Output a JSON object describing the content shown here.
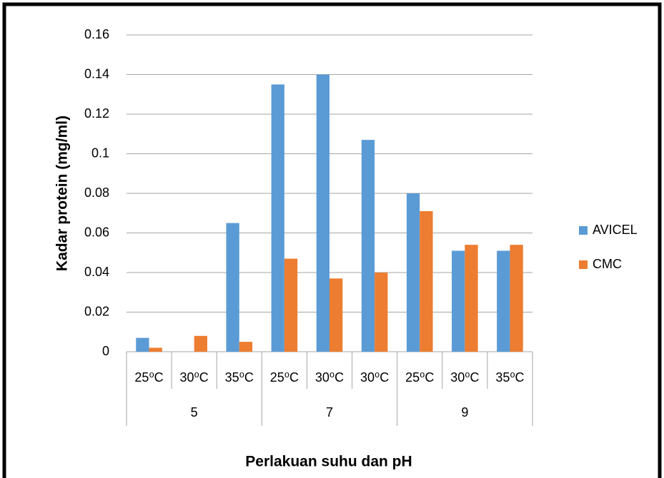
{
  "chart_data": {
    "type": "bar",
    "x_label": "Perlakuan suhu dan pH",
    "y_label": "Kadar protein (mg/ml)",
    "categories": [
      "25⁰C",
      "30⁰C",
      "35⁰C",
      "25⁰C",
      "30⁰C",
      "30⁰C",
      "25⁰C",
      "30⁰C",
      "35⁰C"
    ],
    "category_groups": [
      "5",
      "7",
      "9"
    ],
    "series": [
      {
        "name": "AVICEL",
        "color": "#5b9bd5",
        "values": [
          0.007,
          0,
          0.065,
          0.135,
          0.14,
          0.107,
          0.08,
          0.051,
          0.051
        ]
      },
      {
        "name": "CMC",
        "color": "#ed7d31",
        "values": [
          0.002,
          0.008,
          0.005,
          0.047,
          0.037,
          0.04,
          0.071,
          0.054,
          0.054
        ]
      }
    ],
    "ylim": [
      0,
      0.16
    ],
    "yticks": [
      0,
      0.02,
      0.04,
      0.06,
      0.08,
      0.1,
      0.12,
      0.14,
      0.16
    ],
    "grid": true,
    "legend": "right"
  }
}
